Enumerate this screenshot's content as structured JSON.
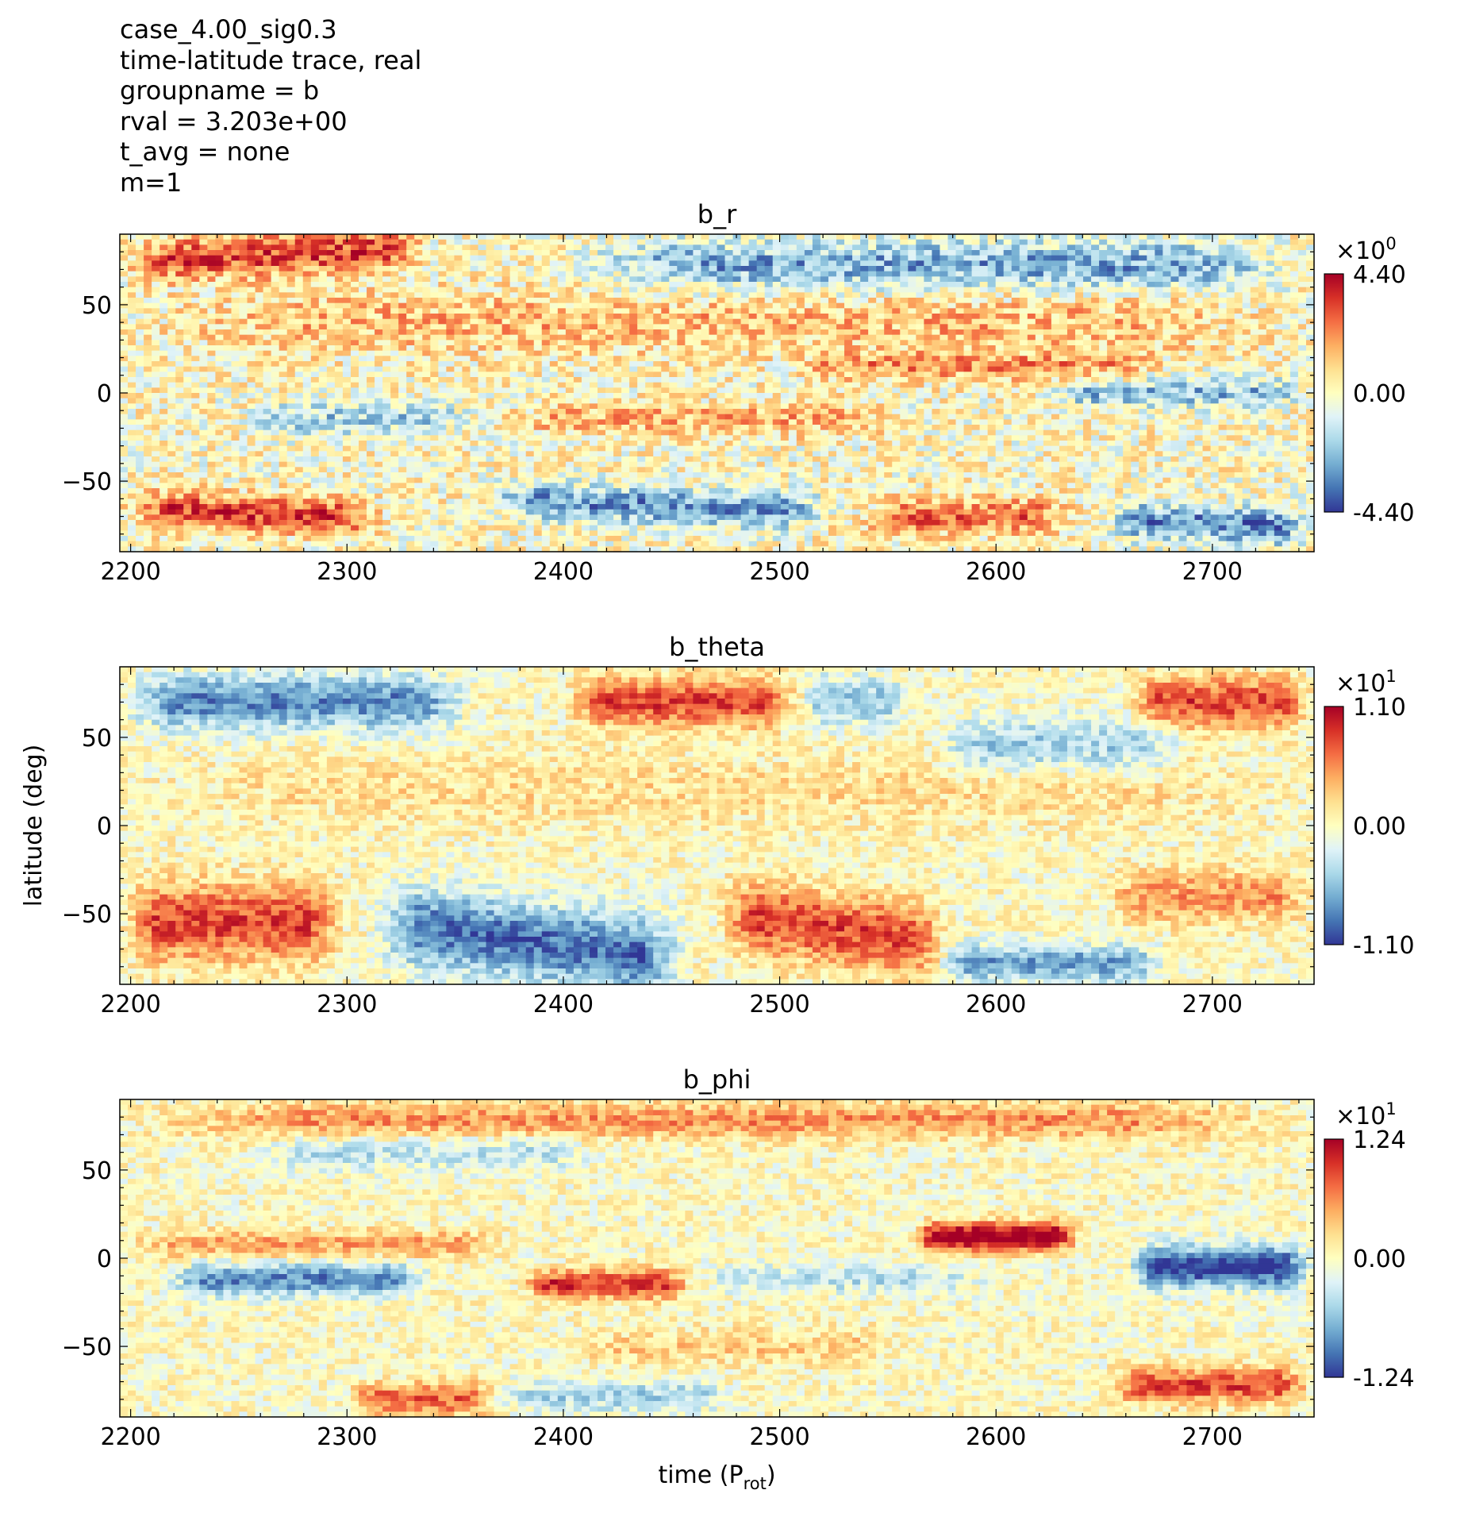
{
  "header": {
    "lines": [
      "case_4.00_sig0.3",
      "time-latitude trace, real",
      "groupname = b",
      "rval = 3.203e+00",
      "t_avg = none",
      "m=1"
    ]
  },
  "chart_data": [
    {
      "type": "heatmap",
      "title": "b_r",
      "xlabel": "",
      "ylabel": "",
      "xlim": [
        2195,
        2747
      ],
      "ylim": [
        -90,
        90
      ],
      "xticks": [
        "2200",
        "2300",
        "2400",
        "2500",
        "2600",
        "2700"
      ],
      "yticks": [
        "50",
        "0",
        "−50"
      ],
      "colormap": "RdYlBu_r",
      "colorbar": {
        "exponent_label": "×10",
        "exponent": "0",
        "max_label": "4.40",
        "mid_label": "0.00",
        "min_label": "-4.40",
        "vmin": -4.4,
        "vmax": 4.4
      },
      "bands": [
        {
          "lat": 75,
          "width": 12,
          "amp": 3.2,
          "t0": 2195,
          "t1": 2340,
          "tilt": 0.05
        },
        {
          "lat": 72,
          "width": 14,
          "amp": -2.6,
          "t0": 2400,
          "t1": 2747,
          "tilt": 0.0
        },
        {
          "lat": 40,
          "width": 18,
          "amp": 1.4,
          "t0": 2195,
          "t1": 2747,
          "tilt": 0.0
        },
        {
          "lat": 15,
          "width": 8,
          "amp": 1.8,
          "t0": 2500,
          "t1": 2680,
          "tilt": 0.0
        },
        {
          "lat": 0,
          "width": 8,
          "amp": -2.2,
          "t0": 2620,
          "t1": 2747,
          "tilt": 0.0
        },
        {
          "lat": -15,
          "width": 9,
          "amp": -1.8,
          "t0": 2250,
          "t1": 2360,
          "tilt": 0.0
        },
        {
          "lat": -15,
          "width": 9,
          "amp": 1.6,
          "t0": 2370,
          "t1": 2560,
          "tilt": 0.0
        },
        {
          "lat": -60,
          "width": 10,
          "amp": -3.0,
          "t0": 2360,
          "t1": 2560,
          "tilt": -0.05
        },
        {
          "lat": -65,
          "width": 10,
          "amp": 3.2,
          "t0": 2195,
          "t1": 2320,
          "tilt": -0.05
        },
        {
          "lat": -72,
          "width": 10,
          "amp": -3.2,
          "t0": 2650,
          "t1": 2747,
          "tilt": -0.05
        },
        {
          "lat": -70,
          "width": 10,
          "amp": 2.6,
          "t0": 2500,
          "t1": 2640,
          "tilt": 0.0
        }
      ],
      "noise": 1.5
    },
    {
      "type": "heatmap",
      "title": "b_theta",
      "xlabel": "",
      "ylabel": "latitude (deg)",
      "xlim": [
        2195,
        2747
      ],
      "ylim": [
        -90,
        90
      ],
      "xticks": [
        "2200",
        "2300",
        "2400",
        "2500",
        "2600",
        "2700"
      ],
      "yticks": [
        "50",
        "0",
        "−50"
      ],
      "colormap": "RdYlBu_r",
      "colorbar": {
        "exponent_label": "×10",
        "exponent": "1",
        "max_label": "1.10",
        "mid_label": "0.00",
        "min_label": "-1.10",
        "vmin": -11,
        "vmax": 11
      },
      "bands": [
        {
          "lat": 70,
          "width": 15,
          "amp": -8,
          "t0": 2195,
          "t1": 2360,
          "tilt": 0.0
        },
        {
          "lat": 70,
          "width": 14,
          "amp": 8,
          "t0": 2400,
          "t1": 2510,
          "tilt": 0.0
        },
        {
          "lat": 70,
          "width": 14,
          "amp": -5,
          "t0": 2510,
          "t1": 2560,
          "tilt": 0.0
        },
        {
          "lat": 45,
          "width": 15,
          "amp": -5,
          "t0": 2570,
          "t1": 2690,
          "tilt": 0.0
        },
        {
          "lat": 70,
          "width": 14,
          "amp": 8,
          "t0": 2660,
          "t1": 2747,
          "tilt": 0.0
        },
        {
          "lat": -55,
          "width": 22,
          "amp": 8,
          "t0": 2195,
          "t1": 2300,
          "tilt": 0.0
        },
        {
          "lat": -55,
          "width": 22,
          "amp": -9,
          "t0": 2310,
          "t1": 2460,
          "tilt": -0.15
        },
        {
          "lat": -50,
          "width": 20,
          "amp": 8,
          "t0": 2470,
          "t1": 2580,
          "tilt": -0.15
        },
        {
          "lat": -78,
          "width": 10,
          "amp": -7,
          "t0": 2570,
          "t1": 2680,
          "tilt": 0.0
        },
        {
          "lat": -40,
          "width": 15,
          "amp": 5,
          "t0": 2650,
          "t1": 2747,
          "tilt": 0.0
        },
        {
          "lat": 20,
          "width": 20,
          "amp": 2,
          "t0": 2195,
          "t1": 2747,
          "tilt": 0.0
        }
      ],
      "noise": 2.5
    },
    {
      "type": "heatmap",
      "title": "b_phi",
      "xlabel": "time (P",
      "xlabel_sub": "rot",
      "xlabel_end": ")",
      "ylabel": "",
      "xlim": [
        2195,
        2747
      ],
      "ylim": [
        -90,
        90
      ],
      "xticks": [
        "2200",
        "2300",
        "2400",
        "2500",
        "2600",
        "2700"
      ],
      "yticks": [
        "50",
        "0",
        "−50"
      ],
      "colormap": "RdYlBu_r",
      "colorbar": {
        "exponent_label": "×10",
        "exponent": "1",
        "max_label": "1.24",
        "mid_label": "0.00",
        "min_label": "-1.24",
        "vmin": -12.4,
        "vmax": 12.4
      },
      "bands": [
        {
          "lat": 78,
          "width": 10,
          "amp": 6,
          "t0": 2195,
          "t1": 2747,
          "tilt": 0.0
        },
        {
          "lat": 60,
          "width": 10,
          "amp": -4,
          "t0": 2250,
          "t1": 2420,
          "tilt": 0.0
        },
        {
          "lat": 8,
          "width": 8,
          "amp": 5,
          "t0": 2195,
          "t1": 2380,
          "tilt": 0.0
        },
        {
          "lat": 12,
          "width": 8,
          "amp": 14,
          "t0": 2560,
          "t1": 2640,
          "tilt": 0.0
        },
        {
          "lat": -12,
          "width": 9,
          "amp": -9,
          "t0": 2215,
          "t1": 2340,
          "tilt": 0.0
        },
        {
          "lat": -15,
          "width": 8,
          "amp": 10,
          "t0": 2380,
          "t1": 2460,
          "tilt": 0.0
        },
        {
          "lat": -12,
          "width": 8,
          "amp": -4,
          "t0": 2460,
          "t1": 2600,
          "tilt": 0.0
        },
        {
          "lat": -5,
          "width": 11,
          "amp": -13,
          "t0": 2660,
          "t1": 2747,
          "tilt": 0.0
        },
        {
          "lat": -80,
          "width": 9,
          "amp": 8,
          "t0": 2300,
          "t1": 2370,
          "tilt": 0.0
        },
        {
          "lat": -78,
          "width": 9,
          "amp": -5,
          "t0": 2370,
          "t1": 2480,
          "tilt": 0.0
        },
        {
          "lat": -72,
          "width": 10,
          "amp": 9,
          "t0": 2650,
          "t1": 2747,
          "tilt": 0.0
        },
        {
          "lat": -50,
          "width": 10,
          "amp": 3,
          "t0": 2400,
          "t1": 2560,
          "tilt": 0.0
        }
      ],
      "noise": 2.8
    }
  ]
}
